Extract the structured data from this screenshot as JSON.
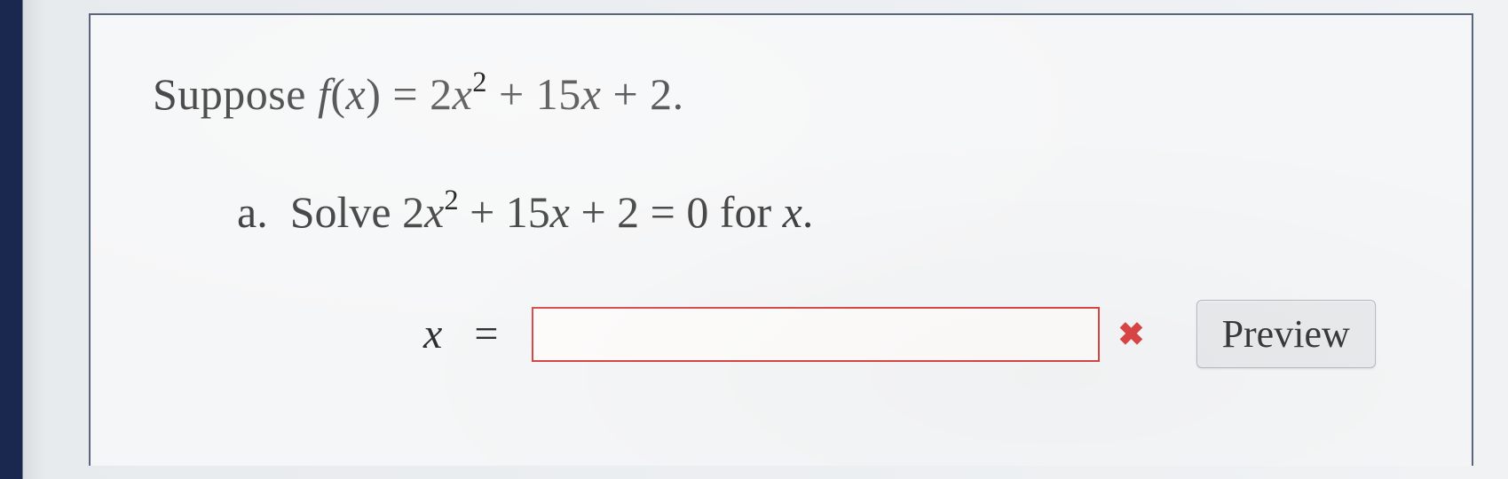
{
  "problem": {
    "intro_prefix": "Suppose ",
    "func_name": "f",
    "func_arg": "x",
    "coef_a": "2",
    "var": "x",
    "exp": "2",
    "coef_b": "15",
    "const_c": "2",
    "period": "."
  },
  "part_a": {
    "label": "a.",
    "verb": "Solve ",
    "coef_a": "2",
    "var": "x",
    "exp": "2",
    "coef_b": "15",
    "const_c": "2",
    "equals_rhs": "0",
    "for_text": " for ",
    "period": "."
  },
  "answer": {
    "var_label": "x",
    "equals": "=",
    "input_value": "",
    "input_placeholder": "",
    "status": "incorrect",
    "status_glyph": "✖",
    "preview_label": "Preview"
  },
  "colors": {
    "border_frame": "#5a6580",
    "input_border_error": "#d94545",
    "button_bg": "#e8eaec",
    "button_border": "#b8bcc0",
    "text": "#2a2a2a",
    "sidebar": "#1a2850",
    "page_bg": "#f5f6f7"
  }
}
